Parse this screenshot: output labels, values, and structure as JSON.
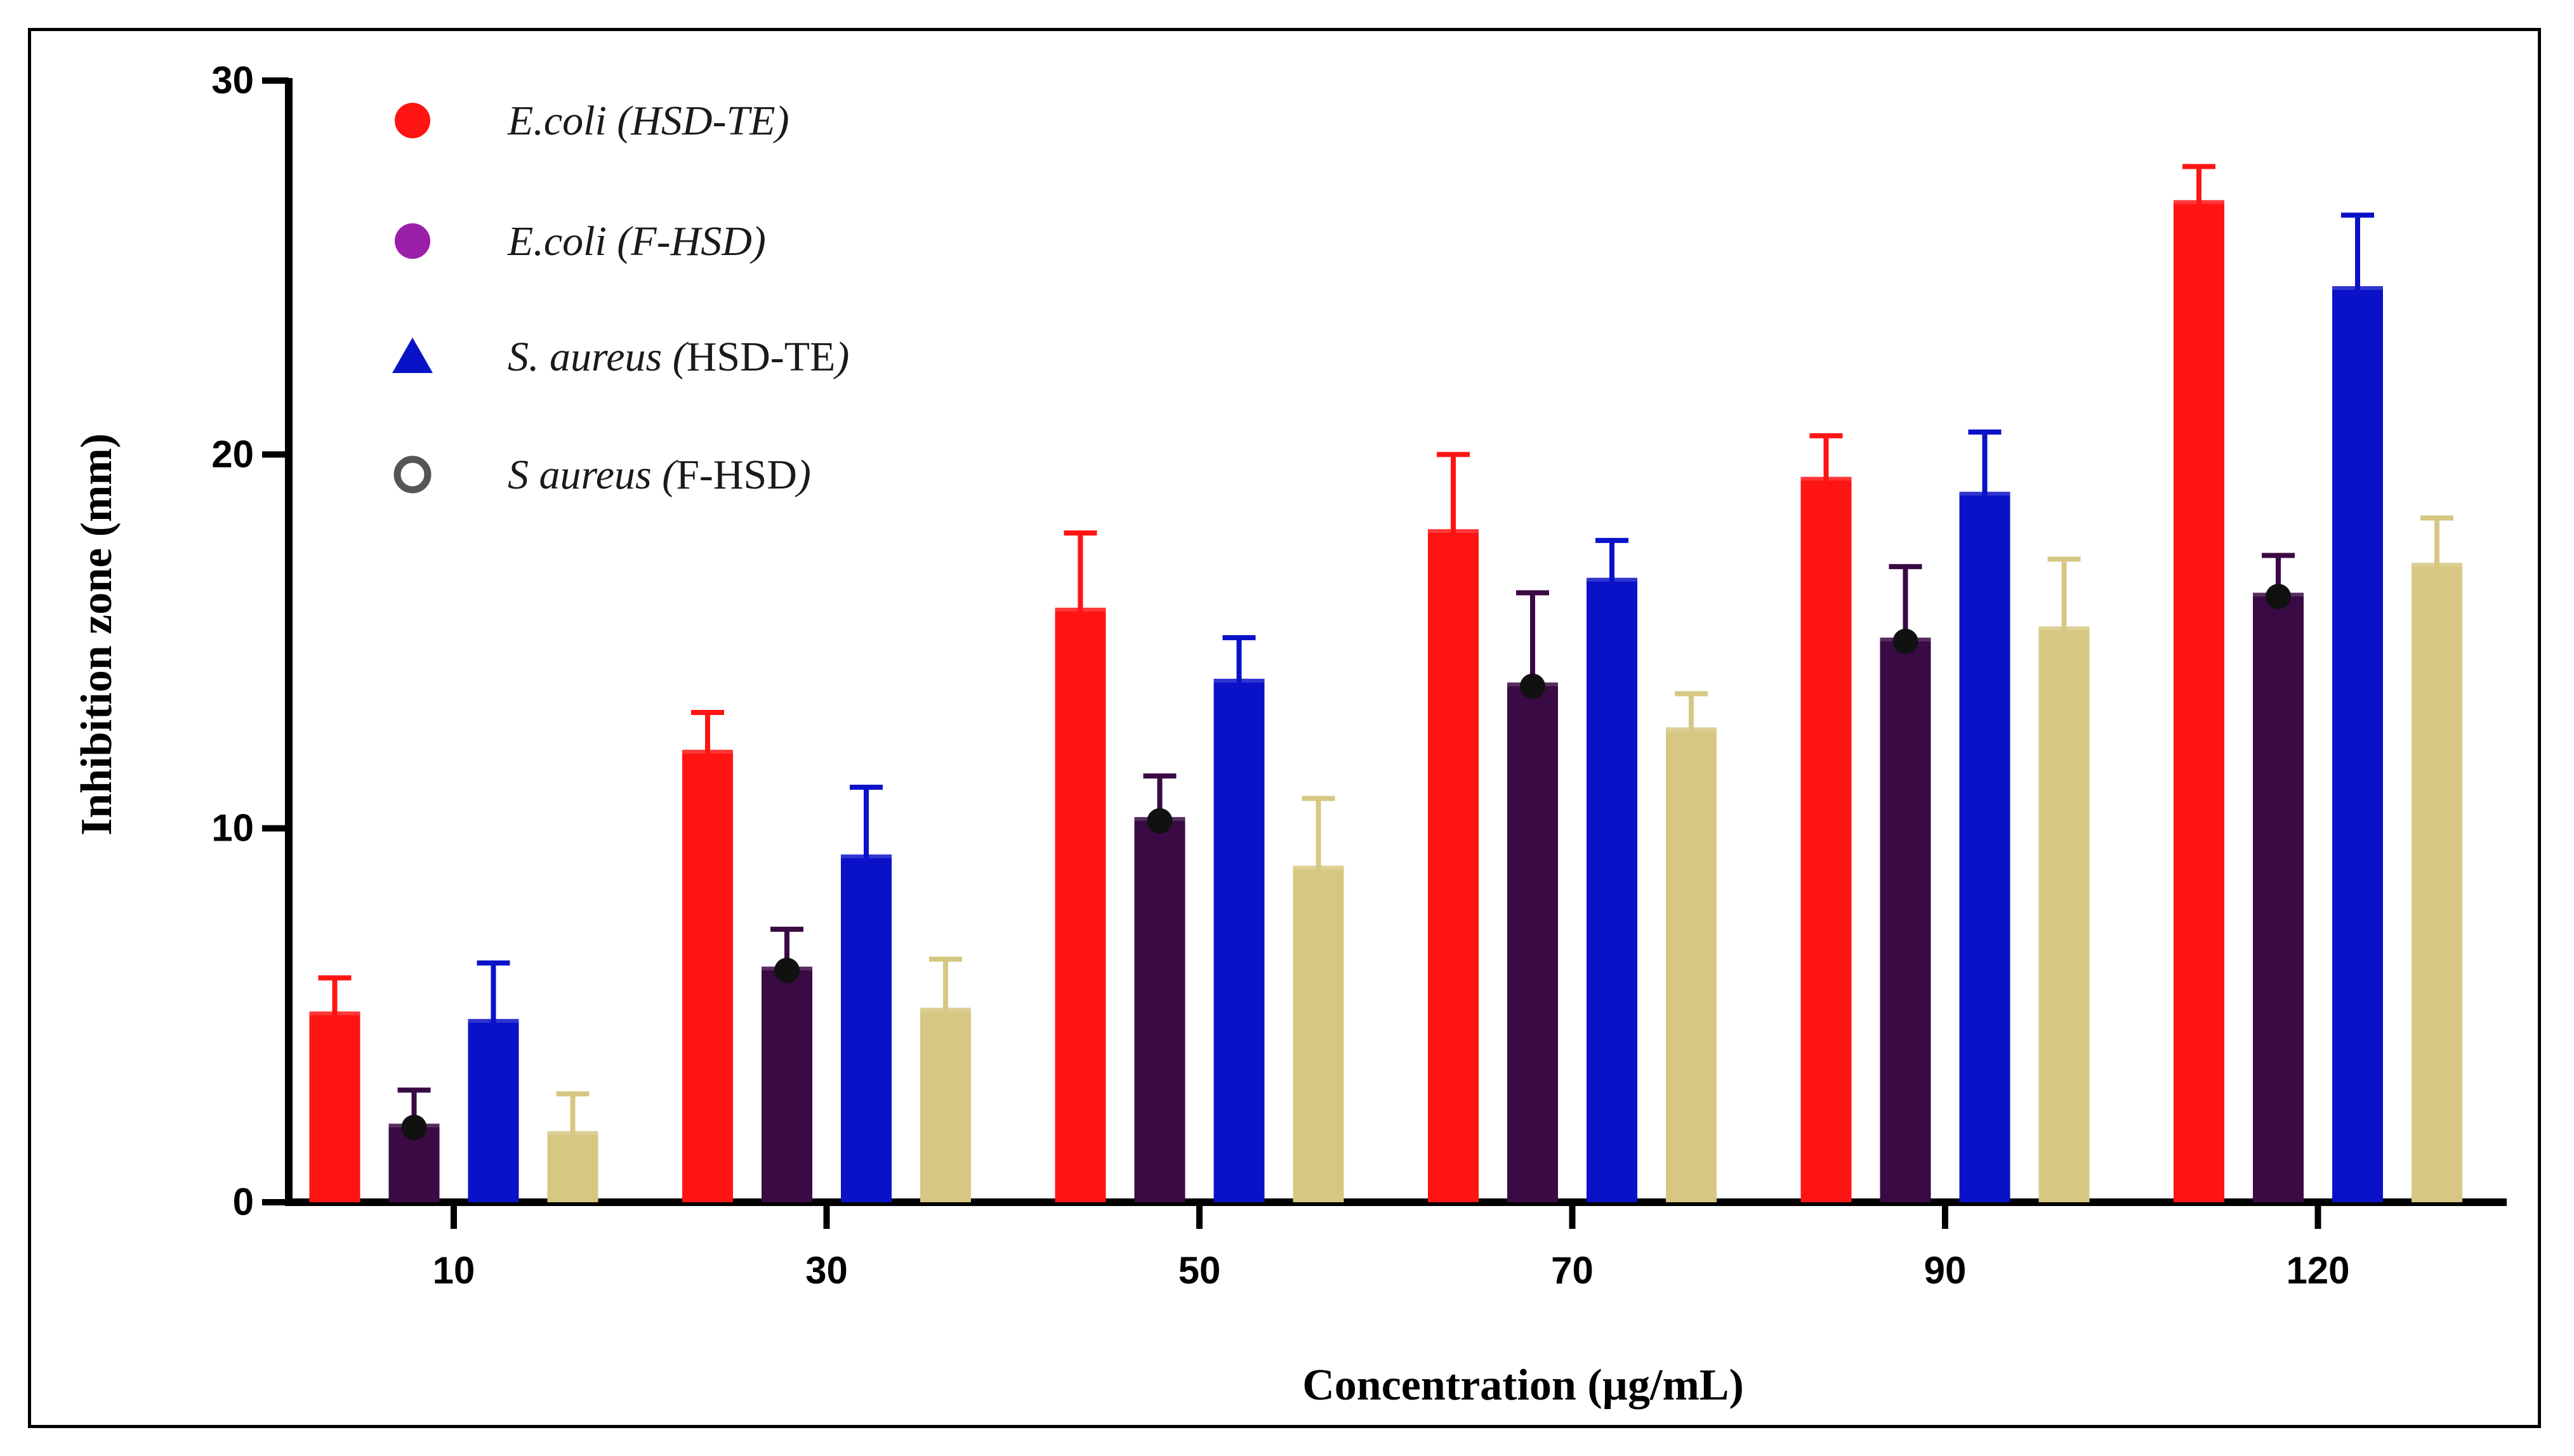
{
  "chart_data": {
    "type": "bar",
    "title": "",
    "xlabel": "Concentration (µg/mL)",
    "ylabel": "Inhibition zone (mm)",
    "ylim": [
      0,
      30
    ],
    "yticks": [
      "0",
      "10",
      "20",
      "30"
    ],
    "categories": [
      "10",
      "30",
      "50",
      "70",
      "90",
      "120"
    ],
    "legend_position": "top-left",
    "series": [
      {
        "name": "E.coli (HSD-TE)",
        "legend": {
          "italic": "E.coli (HSD-TE)",
          "plain": ""
        },
        "marker": "filled-circle",
        "color": "#ff1414",
        "values": [
          5.0,
          12.0,
          15.8,
          17.9,
          19.3,
          26.7
        ],
        "errors": [
          1.0,
          1.1,
          2.1,
          2.1,
          1.2,
          1.0
        ]
      },
      {
        "name": "E.coli (F-HSD)",
        "legend": {
          "italic": "E.coli (F-HSD)",
          "plain": ""
        },
        "marker": "filled-circle",
        "color": "#3a0a44",
        "legend_color": "#9b1fa9",
        "values": [
          2.0,
          6.2,
          10.2,
          13.8,
          15.0,
          16.2
        ],
        "errors": [
          1.0,
          1.1,
          1.2,
          2.5,
          2.0,
          1.1
        ]
      },
      {
        "name": "S. aureus (HSD-TE)",
        "legend": {
          "italic": "S. aureus (",
          "plain": "HSD-TE",
          "italic_end": ")"
        },
        "marker": "triangle",
        "color": "#0a12c8",
        "values": [
          4.8,
          9.2,
          13.9,
          16.6,
          18.9,
          24.4
        ],
        "errors": [
          1.6,
          1.9,
          1.2,
          1.1,
          1.7,
          2.0
        ]
      },
      {
        "name": "S aureus (F-HSD)",
        "legend": {
          "italic": "S aureus (",
          "plain": "F-HSD",
          "italic_end": ")"
        },
        "marker": "open-circle",
        "color": "#d6c882",
        "legend_color": "#555555",
        "values": [
          1.8,
          5.1,
          8.9,
          12.6,
          15.3,
          17.0
        ],
        "errors": [
          1.1,
          1.4,
          1.9,
          1.0,
          1.9,
          1.3
        ]
      }
    ]
  }
}
